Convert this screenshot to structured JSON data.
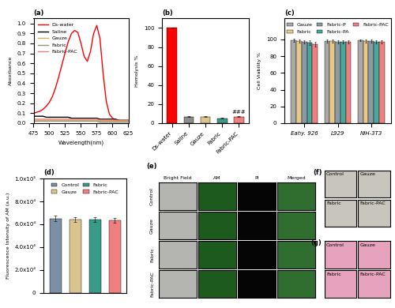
{
  "chart_data": [
    {
      "type": "line",
      "title": "(a)",
      "x_label": "Wavelength(nm)",
      "y_label": "Absorbance",
      "x": [
        475,
        480,
        485,
        490,
        495,
        500,
        505,
        510,
        515,
        520,
        525,
        530,
        535,
        540,
        545,
        550,
        555,
        560,
        565,
        570,
        575,
        580,
        585,
        590,
        595,
        600,
        605,
        610,
        615,
        620,
        625
      ],
      "series": [
        {
          "name": "Ds-water",
          "color": "#ff0000",
          "values": [
            0.1,
            0.11,
            0.12,
            0.14,
            0.17,
            0.21,
            0.27,
            0.36,
            0.47,
            0.59,
            0.71,
            0.82,
            0.9,
            0.93,
            0.91,
            0.8,
            0.67,
            0.62,
            0.72,
            0.9,
            0.98,
            0.85,
            0.5,
            0.22,
            0.09,
            0.05,
            0.03,
            0.03,
            0.02,
            0.02,
            0.02
          ]
        },
        {
          "name": "Saline",
          "color": "#000000",
          "values": [
            0.07,
            0.07,
            0.07,
            0.07,
            0.06,
            0.06,
            0.06,
            0.06,
            0.06,
            0.06,
            0.06,
            0.06,
            0.05,
            0.05,
            0.05,
            0.05,
            0.05,
            0.05,
            0.05,
            0.05,
            0.05,
            0.04,
            0.04,
            0.04,
            0.04,
            0.04,
            0.04,
            0.03,
            0.03,
            0.03,
            0.03
          ]
        },
        {
          "name": "Gauze",
          "color": "#d8b060",
          "values": [
            0.03,
            0.03,
            0.03,
            0.03,
            0.03,
            0.03,
            0.03,
            0.03,
            0.03,
            0.03,
            0.03,
            0.03,
            0.03,
            0.03,
            0.03,
            0.03,
            0.03,
            0.03,
            0.03,
            0.03,
            0.03,
            0.02,
            0.02,
            0.02,
            0.02,
            0.02,
            0.02,
            0.02,
            0.02,
            0.02,
            0.02
          ]
        },
        {
          "name": "Fabric",
          "color": "#8a9a7a",
          "values": [
            0.02,
            0.02,
            0.02,
            0.02,
            0.02,
            0.02,
            0.02,
            0.02,
            0.02,
            0.02,
            0.02,
            0.02,
            0.02,
            0.02,
            0.02,
            0.02,
            0.02,
            0.02,
            0.02,
            0.02,
            0.02,
            0.01,
            0.01,
            0.01,
            0.01,
            0.01,
            0.01,
            0.01,
            0.01,
            0.01,
            0.01
          ]
        },
        {
          "name": "Fabric-PAC",
          "color": "#f08080",
          "values": [
            0.04,
            0.04,
            0.04,
            0.04,
            0.04,
            0.04,
            0.04,
            0.04,
            0.04,
            0.04,
            0.04,
            0.04,
            0.04,
            0.04,
            0.04,
            0.04,
            0.04,
            0.04,
            0.04,
            0.04,
            0.04,
            0.03,
            0.03,
            0.03,
            0.03,
            0.03,
            0.03,
            0.03,
            0.03,
            0.03,
            0.03
          ]
        }
      ],
      "xlim": [
        475,
        625
      ],
      "xticks": [
        475,
        500,
        525,
        550,
        575,
        600,
        625
      ],
      "ylim": [
        0,
        1.05
      ],
      "yticks": [
        {
          "value": 0,
          "label": "0.0"
        },
        {
          "value": 0.1,
          "label": "0.1"
        },
        {
          "value": 0.2,
          "label": "0.2"
        },
        {
          "value": 0.3,
          "label": "0.3"
        },
        {
          "value": 0.4,
          "label": "0.4"
        },
        {
          "value": 0.5,
          "label": "0.5"
        },
        {
          "value": 0.6,
          "label": "0.6"
        },
        {
          "value": 0.7,
          "label": "0.7"
        },
        {
          "value": 0.8,
          "label": "0.8"
        },
        {
          "value": 0.9,
          "label": "0.9"
        },
        {
          "value": 1.0,
          "label": "1.0"
        }
      ],
      "legend": "upper left"
    },
    {
      "type": "bar",
      "title": "(b)",
      "y_label": "Hemolysis %",
      "categories": [
        "Ds-water",
        "Saline",
        "Gauze",
        "Fabric",
        "Fabric-PAC"
      ],
      "values": [
        100,
        7,
        7,
        5,
        7
      ],
      "errors": [
        0,
        0.6,
        0.6,
        0.4,
        0.6
      ],
      "colors": [
        "#ff0000",
        "#8c8c8c",
        "#d8c48c",
        "#3a9a8a",
        "#f08080"
      ],
      "ylim": [
        0,
        110
      ],
      "yticks": [
        0,
        20,
        40,
        60,
        80,
        100
      ],
      "annotations": [
        {
          "text": "###",
          "category": "Fabric-PAC"
        }
      ]
    },
    {
      "type": "bar",
      "title": "(c)",
      "y_label": "Cell Viability %",
      "categories": [
        "Eahy. 926",
        "L929",
        "NIH-3T3"
      ],
      "series": [
        {
          "name": "Gauze",
          "color": "#a9a9a9",
          "values": [
            99,
            98,
            99
          ],
          "errors": [
            2,
            2,
            1
          ]
        },
        {
          "name": "Fabric",
          "color": "#e6c98a",
          "values": [
            98,
            98,
            98
          ],
          "errors": [
            2,
            2,
            2
          ]
        },
        {
          "name": "Fabric-P",
          "color": "#8c9aa6",
          "values": [
            97,
            97,
            98
          ],
          "errors": [
            2,
            2,
            2
          ]
        },
        {
          "name": "Fabric-PA",
          "color": "#4aa89a",
          "values": [
            96,
            97,
            97
          ],
          "errors": [
            3,
            2,
            2
          ]
        },
        {
          "name": "Fabric-PAC",
          "color": "#f08080",
          "values": [
            94,
            97,
            97
          ],
          "errors": [
            3,
            2,
            2
          ]
        }
      ],
      "ylim": [
        0,
        125
      ],
      "yticks": [
        0,
        20,
        40,
        60,
        80,
        100
      ],
      "legend": "upper center"
    },
    {
      "type": "bar",
      "title": "(d)",
      "y_label": "Fluorescence Intensity of AM (a.u.)",
      "categories": [
        "Control",
        "Gauze",
        "Fabric",
        "Fabric-PAC"
      ],
      "values": [
        65000,
        64000,
        64000,
        63500
      ],
      "errors": [
        2500,
        2000,
        2000,
        2000
      ],
      "colors": [
        "#7b8fa6",
        "#d8c48c",
        "#3a9a8a",
        "#f08080"
      ],
      "ylim": [
        0,
        100000
      ],
      "yticks": [
        0,
        {
          "value": 20000,
          "label": "2.0x10⁴"
        },
        {
          "value": 40000,
          "label": "4.0x10⁴"
        },
        {
          "value": 60000,
          "label": "6.0x10⁴"
        },
        {
          "value": 80000,
          "label": "8.0x10⁴"
        },
        {
          "value": 100000,
          "label": "1.0x10⁵"
        }
      ],
      "legend": "upper center",
      "tick_labels": "y"
    },
    {
      "type": "image_grid",
      "title": "(e)",
      "columns": [
        "Bright Field",
        "AM",
        "PI",
        "Merged"
      ],
      "rows": [
        "Control",
        "Gauze",
        "Fabric",
        "Fabric-PAC"
      ]
    },
    {
      "type": "image_panels",
      "title": "(f)",
      "panels": [
        "Control",
        "Gauze",
        "Fabric",
        "Fabric-PAC"
      ]
    },
    {
      "type": "image_panels",
      "title": "(g)",
      "panels": [
        "Control",
        "Gauze",
        "Fabric",
        "Fabric-PAC"
      ]
    }
  ]
}
